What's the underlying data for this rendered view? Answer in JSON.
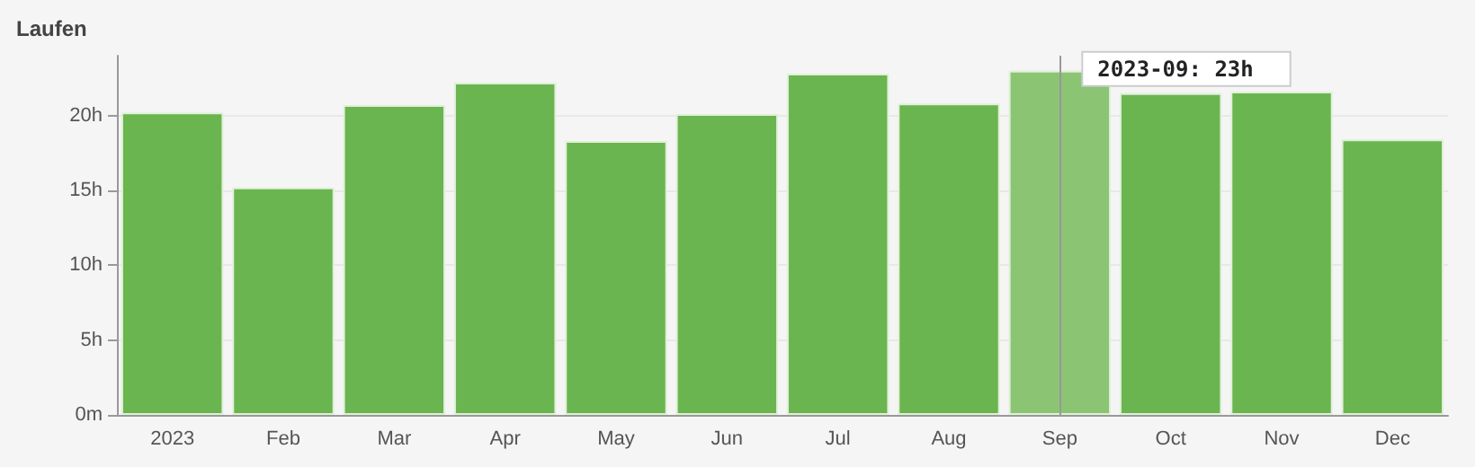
{
  "chart_data": {
    "type": "bar",
    "title": "Laufen",
    "categories": [
      "2023",
      "Feb",
      "Mar",
      "Apr",
      "May",
      "Jun",
      "Jul",
      "Aug",
      "Sep",
      "Oct",
      "Nov",
      "Dec"
    ],
    "values": [
      20.2,
      15.2,
      20.7,
      22.2,
      18.3,
      20.1,
      22.8,
      20.8,
      23,
      21.5,
      21.6,
      18.4
    ],
    "colors": [
      "#6ab54f",
      "#6ab54f",
      "#6ab54f",
      "#6ab54f",
      "#6ab54f",
      "#6ab54f",
      "#6ab54f",
      "#6ab54f",
      "#8bc574",
      "#6ab54f",
      "#6ab54f",
      "#6ab54f"
    ],
    "ylim": [
      0,
      24
    ],
    "yticks": [
      {
        "value": 0,
        "label": "0m"
      },
      {
        "value": 5,
        "label": "5h"
      },
      {
        "value": 10,
        "label": "10h"
      },
      {
        "value": 15,
        "label": "15h"
      },
      {
        "value": 20,
        "label": "20h"
      }
    ],
    "grid": "y",
    "ref_lines": [
      {
        "axis": "x",
        "value": "Sep",
        "color": "#999999"
      }
    ],
    "annotations": [
      {
        "text": "2023-09: 23h",
        "x": "Sep",
        "y": 23
      }
    ]
  }
}
